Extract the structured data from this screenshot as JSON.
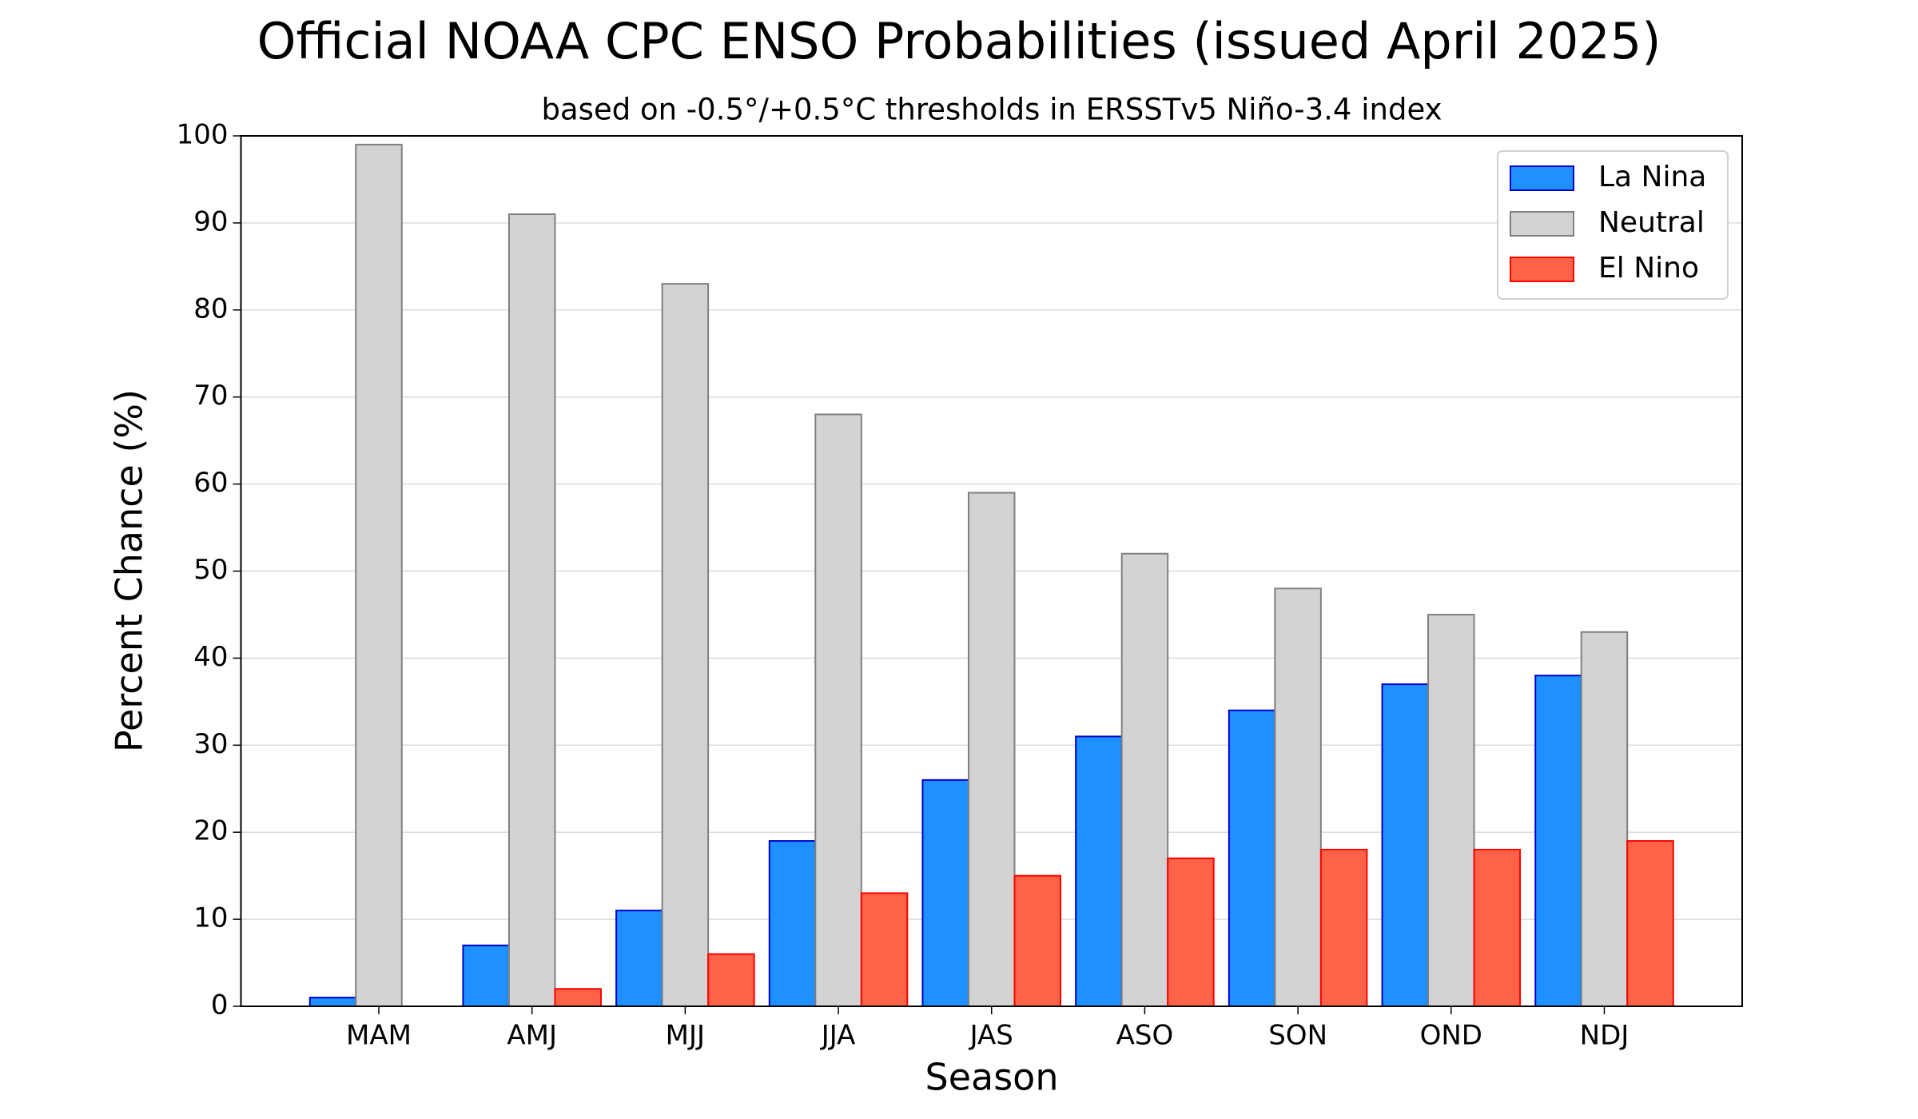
{
  "chart_data": {
    "type": "bar",
    "title": "Official NOAA CPC ENSO Probabilities (issued April 2025)",
    "subtitle": "based on -0.5°/+0.5°C thresholds in ERSSTv5 Niño-3.4 index",
    "x_label": "Season",
    "y_label": "Percent Chance (%)",
    "categories": [
      "MAM",
      "AMJ",
      "MJJ",
      "JJA",
      "JAS",
      "ASO",
      "SON",
      "OND",
      "NDJ"
    ],
    "series": [
      {
        "name": "La Nina",
        "color": "#1e90ff",
        "edgecolor": "#0000cd",
        "values": [
          1,
          7,
          11,
          19,
          26,
          31,
          34,
          37,
          38
        ]
      },
      {
        "name": "Neutral",
        "color": "#d3d3d3",
        "edgecolor": "#808080",
        "values": [
          99,
          91,
          83,
          68,
          59,
          52,
          48,
          45,
          43
        ]
      },
      {
        "name": "El Nino",
        "color": "#ff6347",
        "edgecolor": "#ff0000",
        "values": [
          0,
          2,
          6,
          13,
          15,
          17,
          18,
          18,
          19
        ]
      }
    ],
    "ylim": [
      0,
      100
    ],
    "yticks": [
      0,
      10,
      20,
      30,
      40,
      50,
      60,
      70,
      80,
      90,
      100
    ],
    "grid": true,
    "legend": "upper right"
  }
}
